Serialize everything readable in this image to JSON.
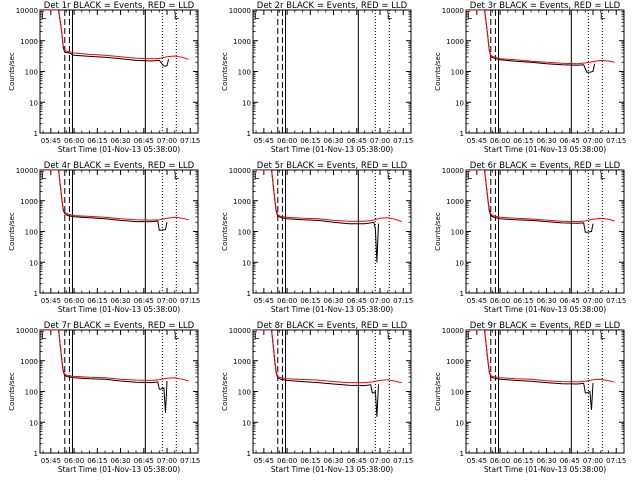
{
  "chart_data": [
    {
      "id": 1,
      "type": "line",
      "title": "Det 1r BLACK = Events, RED = LLD",
      "marker": "L",
      "xlabel": "Start Time (01-Nov-13 05:38:00)",
      "ylabel": "Counts/sec",
      "xticks": [
        "05:45",
        "06:00",
        "06:15",
        "06:30",
        "06:45",
        "07:00",
        "07:15"
      ],
      "yticks": [
        "1",
        "10",
        "100",
        "1000",
        "10000"
      ],
      "yscale": "log",
      "ylim": [
        1,
        10000
      ],
      "xlim_minutes": [
        338,
        440
      ],
      "dashed_lines_minutes": [
        354,
        357
      ],
      "solid_lines_minutes": [
        359,
        406
      ],
      "dotted_lines_minutes": [
        417,
        426
      ],
      "series": [
        {
          "color": "#000000",
          "x_minutes": [
            338,
            350,
            352,
            353,
            354,
            357,
            358,
            359,
            360,
            370,
            380,
            390,
            400,
            410,
            415,
            418,
            419,
            420,
            421
          ],
          "y": [
            13000,
            13000,
            2000,
            600,
            420,
            400,
            380,
            350,
            340,
            310,
            290,
            260,
            230,
            220,
            230,
            150,
            150,
            155,
            250
          ]
        },
        {
          "color": "#ff0000",
          "x_minutes": [
            338,
            350,
            352,
            353,
            354,
            357,
            360,
            370,
            380,
            390,
            400,
            410,
            415,
            420,
            425,
            430,
            434
          ],
          "y": [
            13000,
            13000,
            2000,
            700,
            470,
            440,
            400,
            360,
            340,
            300,
            270,
            260,
            265,
            300,
            320,
            290,
            250
          ]
        }
      ]
    },
    {
      "id": 2,
      "type": "line",
      "title": "Det 2r BLACK = Events, RED = LLD",
      "marker": "L",
      "xlabel": "Start Time (01-Nov-13 05:38:00)",
      "ylabel": "Counts/sec",
      "xticks": [
        "05:45",
        "06:00",
        "06:15",
        "06:30",
        "06:45",
        "07:00",
        "07:15"
      ],
      "yticks": [
        "1",
        "10",
        "100",
        "1000",
        "10000"
      ],
      "yscale": "log",
      "ylim": [
        1,
        10000
      ],
      "xlim_minutes": [
        338,
        440
      ],
      "dashed_lines_minutes": [
        354,
        357
      ],
      "solid_lines_minutes": [
        359,
        406
      ],
      "dotted_lines_minutes": [
        417,
        426
      ],
      "series": []
    },
    {
      "id": 3,
      "type": "line",
      "title": "Det 3r BLACK = Events, RED = LLD",
      "marker": "L",
      "xlabel": "Start Time (01-Nov-13 05:38:00)",
      "ylabel": "Counts/sec",
      "xticks": [
        "05:45",
        "06:00",
        "06:15",
        "06:30",
        "06:45",
        "07:00",
        "07:15"
      ],
      "yticks": [
        "1",
        "10",
        "100",
        "1000",
        "10000"
      ],
      "yscale": "log",
      "ylim": [
        1,
        10000
      ],
      "xlim_minutes": [
        338,
        440
      ],
      "dashed_lines_minutes": [
        354,
        357
      ],
      "solid_lines_minutes": [
        359,
        406
      ],
      "dotted_lines_minutes": [
        417,
        426
      ],
      "series": [
        {
          "color": "#000000",
          "x_minutes": [
            338,
            350,
            352,
            353,
            354,
            357,
            360,
            370,
            380,
            390,
            400,
            410,
            414,
            416,
            418,
            420,
            421
          ],
          "y": [
            13000,
            13000,
            1500,
            500,
            300,
            260,
            240,
            215,
            200,
            180,
            165,
            160,
            165,
            95,
            95,
            100,
            180
          ]
        },
        {
          "color": "#ff0000",
          "x_minutes": [
            338,
            350,
            352,
            353,
            354,
            357,
            360,
            370,
            380,
            390,
            400,
            410,
            415,
            420,
            425,
            430,
            434
          ],
          "y": [
            13000,
            13000,
            1500,
            500,
            330,
            290,
            260,
            240,
            215,
            200,
            185,
            180,
            190,
            210,
            230,
            220,
            200
          ]
        }
      ]
    },
    {
      "id": 4,
      "type": "line",
      "title": "Det 4r BLACK = Events, RED = LLD",
      "marker": "L",
      "xlabel": "Start Time (01-Nov-13 05:38:00)",
      "ylabel": "Counts/sec",
      "xticks": [
        "05:45",
        "06:00",
        "06:15",
        "06:30",
        "06:45",
        "07:00",
        "07:15"
      ],
      "yticks": [
        "1",
        "10",
        "100",
        "1000",
        "10000"
      ],
      "yscale": "log",
      "ylim": [
        1,
        10000
      ],
      "xlim_minutes": [
        338,
        440
      ],
      "dashed_lines_minutes": [
        354,
        357
      ],
      "solid_lines_minutes": [
        359,
        406
      ],
      "dotted_lines_minutes": [
        417,
        426
      ],
      "series": [
        {
          "color": "#000000",
          "x_minutes": [
            338,
            350,
            352,
            353,
            354,
            356,
            360,
            370,
            380,
            390,
            400,
            410,
            414,
            415,
            416,
            419,
            420
          ],
          "y": [
            13000,
            13000,
            1200,
            500,
            380,
            330,
            300,
            280,
            260,
            230,
            210,
            210,
            220,
            110,
            110,
            115,
            200
          ]
        },
        {
          "color": "#ff0000",
          "x_minutes": [
            338,
            350,
            352,
            353,
            354,
            356,
            360,
            370,
            380,
            390,
            400,
            410,
            415,
            420,
            425,
            430,
            434
          ],
          "y": [
            13000,
            13000,
            1300,
            550,
            420,
            370,
            330,
            310,
            290,
            260,
            240,
            235,
            240,
            270,
            290,
            270,
            240
          ]
        }
      ]
    },
    {
      "id": 5,
      "type": "line",
      "title": "Det 5r BLACK = Events, RED = LLD",
      "marker": "L",
      "xlabel": "Start Time (01-Nov-13 05:38:00)",
      "ylabel": "Counts/sec",
      "xticks": [
        "05:45",
        "06:00",
        "06:15",
        "06:30",
        "06:45",
        "07:00",
        "07:15"
      ],
      "yticks": [
        "1",
        "10",
        "100",
        "1000",
        "10000"
      ],
      "yscale": "log",
      "ylim": [
        1,
        10000
      ],
      "xlim_minutes": [
        338,
        440
      ],
      "dashed_lines_minutes": [
        354,
        357
      ],
      "solid_lines_minutes": [
        359,
        406
      ],
      "dotted_lines_minutes": [
        417,
        426
      ],
      "series": [
        {
          "color": "#000000",
          "x_minutes": [
            338,
            350,
            352,
            353,
            354,
            356,
            360,
            370,
            380,
            390,
            400,
            410,
            414,
            416,
            417,
            418,
            419
          ],
          "y": [
            13000,
            13000,
            1100,
            450,
            320,
            280,
            260,
            240,
            230,
            200,
            180,
            180,
            190,
            200,
            120,
            10,
            180
          ]
        },
        {
          "color": "#ff0000",
          "x_minutes": [
            338,
            350,
            352,
            353,
            354,
            356,
            360,
            370,
            380,
            390,
            400,
            410,
            415,
            420,
            425,
            430,
            434
          ],
          "y": [
            13000,
            13000,
            1200,
            500,
            350,
            310,
            290,
            270,
            260,
            230,
            215,
            215,
            230,
            270,
            280,
            250,
            210
          ]
        }
      ]
    },
    {
      "id": 6,
      "type": "line",
      "title": "Det 6r BLACK = Events, RED = LLD",
      "marker": "L",
      "xlabel": "Start Time (01-Nov-13 05:38:00)",
      "ylabel": "Counts/sec",
      "xticks": [
        "05:45",
        "06:00",
        "06:15",
        "06:30",
        "06:45",
        "07:00",
        "07:15"
      ],
      "yticks": [
        "1",
        "10",
        "100",
        "1000",
        "10000"
      ],
      "yscale": "log",
      "ylim": [
        1,
        10000
      ],
      "xlim_minutes": [
        338,
        440
      ],
      "dashed_lines_minutes": [
        354,
        357
      ],
      "solid_lines_minutes": [
        359,
        406
      ],
      "dotted_lines_minutes": [
        417,
        426
      ],
      "series": [
        {
          "color": "#000000",
          "x_minutes": [
            338,
            350,
            352,
            353,
            354,
            356,
            360,
            370,
            380,
            390,
            400,
            410,
            414,
            415,
            416,
            419,
            420
          ],
          "y": [
            13000,
            13000,
            1200,
            480,
            330,
            290,
            260,
            240,
            230,
            210,
            190,
            185,
            190,
            95,
            95,
            100,
            180
          ]
        },
        {
          "color": "#ff0000",
          "x_minutes": [
            338,
            350,
            352,
            353,
            354,
            356,
            360,
            370,
            380,
            390,
            400,
            410,
            415,
            420,
            425,
            430,
            434
          ],
          "y": [
            13000,
            13000,
            1300,
            550,
            370,
            320,
            290,
            270,
            255,
            235,
            215,
            210,
            220,
            250,
            270,
            250,
            220
          ]
        }
      ]
    },
    {
      "id": 7,
      "type": "line",
      "title": "Det 7r BLACK = Events, RED = LLD",
      "marker": "L",
      "xlabel": "Start Time (01-Nov-13 05:38:00)",
      "ylabel": "Counts/sec",
      "xticks": [
        "05:45",
        "06:00",
        "06:15",
        "06:30",
        "06:45",
        "07:00",
        "07:15"
      ],
      "yticks": [
        "1",
        "10",
        "100",
        "1000",
        "10000"
      ],
      "yscale": "log",
      "ylim": [
        1,
        10000
      ],
      "xlim_minutes": [
        338,
        440
      ],
      "dashed_lines_minutes": [
        354,
        357
      ],
      "solid_lines_minutes": [
        359,
        406
      ],
      "dotted_lines_minutes": [
        417,
        426
      ],
      "series": [
        {
          "color": "#000000",
          "x_minutes": [
            338,
            350,
            352,
            353,
            354,
            356,
            360,
            370,
            380,
            390,
            400,
            410,
            414,
            415,
            416,
            418,
            419,
            420
          ],
          "y": [
            13000,
            13000,
            1100,
            450,
            330,
            300,
            280,
            260,
            250,
            220,
            200,
            195,
            205,
            120,
            120,
            130,
            20,
            220
          ]
        },
        {
          "color": "#ff0000",
          "x_minutes": [
            338,
            350,
            352,
            353,
            354,
            356,
            360,
            370,
            380,
            390,
            400,
            410,
            415,
            420,
            425,
            430,
            434
          ],
          "y": [
            13000,
            13000,
            1200,
            500,
            360,
            330,
            310,
            290,
            280,
            250,
            235,
            230,
            240,
            270,
            280,
            250,
            220
          ]
        }
      ]
    },
    {
      "id": 8,
      "type": "line",
      "title": "Det 8r BLACK = Events, RED = LLD",
      "marker": "L",
      "xlabel": "Start Time (01-Nov-13 05:38:00)",
      "ylabel": "Counts/sec",
      "xticks": [
        "05:45",
        "06:00",
        "06:15",
        "06:30",
        "06:45",
        "07:00",
        "07:15"
      ],
      "yticks": [
        "1",
        "10",
        "100",
        "1000",
        "10000"
      ],
      "yscale": "log",
      "ylim": [
        1,
        10000
      ],
      "xlim_minutes": [
        338,
        440
      ],
      "dashed_lines_minutes": [
        354,
        357
      ],
      "solid_lines_minutes": [
        359,
        406
      ],
      "dotted_lines_minutes": [
        417,
        426
      ],
      "series": [
        {
          "color": "#000000",
          "x_minutes": [
            338,
            350,
            352,
            353,
            354,
            356,
            360,
            370,
            380,
            390,
            400,
            410,
            414,
            415,
            416,
            417,
            418,
            419
          ],
          "y": [
            13000,
            13000,
            1000,
            400,
            280,
            250,
            230,
            210,
            195,
            175,
            160,
            155,
            165,
            90,
            90,
            100,
            15,
            170
          ]
        },
        {
          "color": "#ff0000",
          "x_minutes": [
            338,
            350,
            352,
            353,
            354,
            356,
            360,
            370,
            380,
            390,
            400,
            410,
            415,
            420,
            425,
            430,
            434
          ],
          "y": [
            13000,
            13000,
            1100,
            450,
            310,
            280,
            260,
            245,
            235,
            210,
            195,
            195,
            205,
            230,
            240,
            215,
            190
          ]
        }
      ]
    },
    {
      "id": 9,
      "type": "line",
      "title": "Det 9r BLACK = Events, RED = LLD",
      "marker": "L",
      "xlabel": "Start Time (01-Nov-13 05:38:00)",
      "ylabel": "Counts/sec",
      "xticks": [
        "05:45",
        "06:00",
        "06:15",
        "06:30",
        "06:45",
        "07:00",
        "07:15"
      ],
      "yticks": [
        "1",
        "10",
        "100",
        "1000",
        "10000"
      ],
      "yscale": "log",
      "ylim": [
        1,
        10000
      ],
      "xlim_minutes": [
        338,
        440
      ],
      "dashed_lines_minutes": [
        354,
        357
      ],
      "solid_lines_minutes": [
        359,
        406
      ],
      "dotted_lines_minutes": [
        417,
        426
      ],
      "series": [
        {
          "color": "#000000",
          "x_minutes": [
            338,
            350,
            352,
            353,
            354,
            356,
            360,
            370,
            380,
            390,
            400,
            410,
            414,
            415,
            416,
            418,
            419,
            420
          ],
          "y": [
            13000,
            13000,
            1100,
            430,
            300,
            270,
            250,
            230,
            215,
            195,
            180,
            175,
            185,
            90,
            90,
            100,
            25,
            190
          ]
        },
        {
          "color": "#ff0000",
          "x_minutes": [
            338,
            350,
            352,
            353,
            354,
            356,
            360,
            370,
            380,
            390,
            400,
            410,
            415,
            420,
            425,
            430,
            434
          ],
          "y": [
            13000,
            13000,
            1200,
            480,
            330,
            300,
            280,
            260,
            250,
            225,
            210,
            205,
            215,
            240,
            250,
            225,
            200
          ]
        }
      ]
    }
  ]
}
